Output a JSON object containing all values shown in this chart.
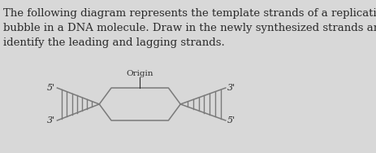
{
  "bg_color": "#d8d8d8",
  "text_color": "#2b2b2b",
  "title_text": "The following diagram represents the template strands of a replication\nbubble in a DNA molecule. Draw in the newly synthesized strands and\nidentify the leading and lagging strands.",
  "origin_label": "Origin",
  "label_left_top": "5'",
  "label_left_bot": "3'",
  "label_right_top": "3'",
  "label_right_bot": "5'",
  "strand_color": "#7a7a7a",
  "bubble_color": "#7a7a7a",
  "tick_color": "#7a7a7a",
  "font_size_title": 9.5,
  "font_size_label": 8,
  "font_size_origin": 7.5
}
